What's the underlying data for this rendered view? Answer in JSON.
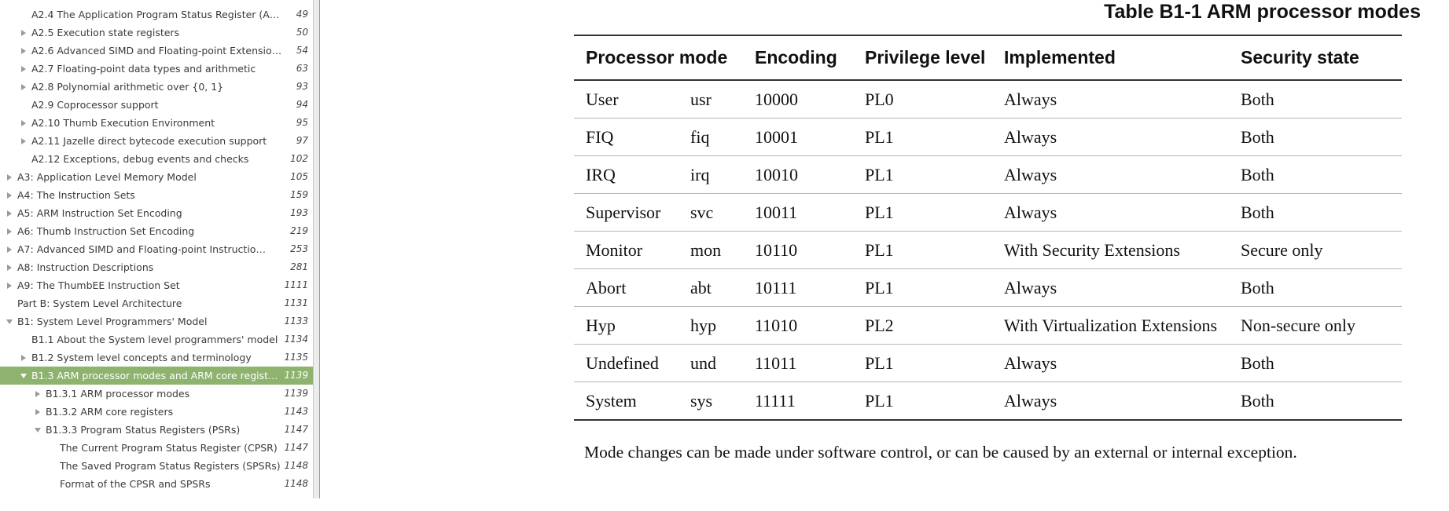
{
  "sidebar": {
    "items": [
      {
        "label": "",
        "page": "",
        "level": 1,
        "arrow": "none",
        "selected": false
      },
      {
        "label": "A2.4 The Application Program Status Register (A…",
        "page": "49",
        "level": 1,
        "arrow": "none",
        "selected": false
      },
      {
        "label": "A2.5 Execution state registers",
        "page": "50",
        "level": 1,
        "arrow": "right",
        "selected": false
      },
      {
        "label": "A2.6 Advanced SIMD and Floating-point Extensio…",
        "page": "54",
        "level": 1,
        "arrow": "right",
        "selected": false
      },
      {
        "label": "A2.7 Floating-point data types and arithmetic",
        "page": "63",
        "level": 1,
        "arrow": "right",
        "selected": false
      },
      {
        "label": "A2.8 Polynomial arithmetic over {0, 1}",
        "page": "93",
        "level": 1,
        "arrow": "right",
        "selected": false
      },
      {
        "label": "A2.9 Coprocessor support",
        "page": "94",
        "level": 1,
        "arrow": "none",
        "selected": false
      },
      {
        "label": "A2.10 Thumb Execution Environment",
        "page": "95",
        "level": 1,
        "arrow": "right",
        "selected": false
      },
      {
        "label": "A2.11 Jazelle direct bytecode execution support",
        "page": "97",
        "level": 1,
        "arrow": "right",
        "selected": false
      },
      {
        "label": "A2.12 Exceptions, debug events and checks",
        "page": "102",
        "level": 1,
        "arrow": "none",
        "selected": false
      },
      {
        "label": "A3: Application Level Memory Model",
        "page": "105",
        "level": 0,
        "arrow": "right",
        "selected": false
      },
      {
        "label": "A4: The Instruction Sets",
        "page": "159",
        "level": 0,
        "arrow": "right",
        "selected": false
      },
      {
        "label": "A5: ARM Instruction Set Encoding",
        "page": "193",
        "level": 0,
        "arrow": "right",
        "selected": false
      },
      {
        "label": "A6: Thumb Instruction Set Encoding",
        "page": "219",
        "level": 0,
        "arrow": "right",
        "selected": false
      },
      {
        "label": "A7: Advanced SIMD and Floating-point Instructio…",
        "page": "253",
        "level": 0,
        "arrow": "right",
        "selected": false
      },
      {
        "label": "A8: Instruction Descriptions",
        "page": "281",
        "level": 0,
        "arrow": "right",
        "selected": false
      },
      {
        "label": "A9: The ThumbEE Instruction Set",
        "page": "1111",
        "level": 0,
        "arrow": "right",
        "selected": false
      },
      {
        "label": "Part B: System Level Architecture",
        "page": "1131",
        "level": 0,
        "arrow": "none",
        "selected": false
      },
      {
        "label": "B1: System Level Programmers' Model",
        "page": "1133",
        "level": 0,
        "arrow": "down",
        "selected": false
      },
      {
        "label": "B1.1 About the System level programmers' model",
        "page": "1134",
        "level": 1,
        "arrow": "none",
        "selected": false
      },
      {
        "label": "B1.2 System level concepts and terminology",
        "page": "1135",
        "level": 1,
        "arrow": "right",
        "selected": false
      },
      {
        "label": "B1.3 ARM processor modes and ARM core regist…",
        "page": "1139",
        "level": 1,
        "arrow": "down",
        "selected": true
      },
      {
        "label": "B1.3.1 ARM processor modes",
        "page": "1139",
        "level": 2,
        "arrow": "right",
        "selected": false
      },
      {
        "label": "B1.3.2 ARM core registers",
        "page": "1143",
        "level": 2,
        "arrow": "right",
        "selected": false
      },
      {
        "label": "B1.3.3 Program Status Registers (PSRs)",
        "page": "1147",
        "level": 2,
        "arrow": "down",
        "selected": false
      },
      {
        "label": "The Current Program Status Register (CPSR)",
        "page": "1147",
        "level": 3,
        "arrow": "none",
        "selected": false
      },
      {
        "label": "The Saved Program Status Registers (SPSRs)",
        "page": "1148",
        "level": 3,
        "arrow": "none",
        "selected": false
      },
      {
        "label": "Format of the CPSR and SPSRs",
        "page": "1148",
        "level": 3,
        "arrow": "none",
        "selected": false
      },
      {
        "label": "",
        "page": "",
        "level": 3,
        "arrow": "none",
        "selected": false
      }
    ]
  },
  "document": {
    "caption": "Table B1-1 ARM processor modes",
    "headers": [
      "Processor mode",
      "Encoding",
      "Privilege level",
      "Implemented",
      "Security state"
    ],
    "rows": [
      [
        "User",
        "usr",
        "10000",
        "PL0",
        "Always",
        "Both"
      ],
      [
        "FIQ",
        "fiq",
        "10001",
        "PL1",
        "Always",
        "Both"
      ],
      [
        "IRQ",
        "irq",
        "10010",
        "PL1",
        "Always",
        "Both"
      ],
      [
        "Supervisor",
        "svc",
        "10011",
        "PL1",
        "Always",
        "Both"
      ],
      [
        "Monitor",
        "mon",
        "10110",
        "PL1",
        "With Security Extensions",
        "Secure only"
      ],
      [
        "Abort",
        "abt",
        "10111",
        "PL1",
        "Always",
        "Both"
      ],
      [
        "Hyp",
        "hyp",
        "11010",
        "PL2",
        "With Virtualization Extensions",
        "Non-secure only"
      ],
      [
        "Undefined",
        "und",
        "11011",
        "PL1",
        "Always",
        "Both"
      ],
      [
        "System",
        "sys",
        "11111",
        "PL1",
        "Always",
        "Both"
      ]
    ],
    "body_text": "Mode changes can be made under software control, or can be caused by an external or internal exception."
  },
  "colors": {
    "selected_bg": "#8db36e",
    "arrow": "#9a9a9a"
  }
}
